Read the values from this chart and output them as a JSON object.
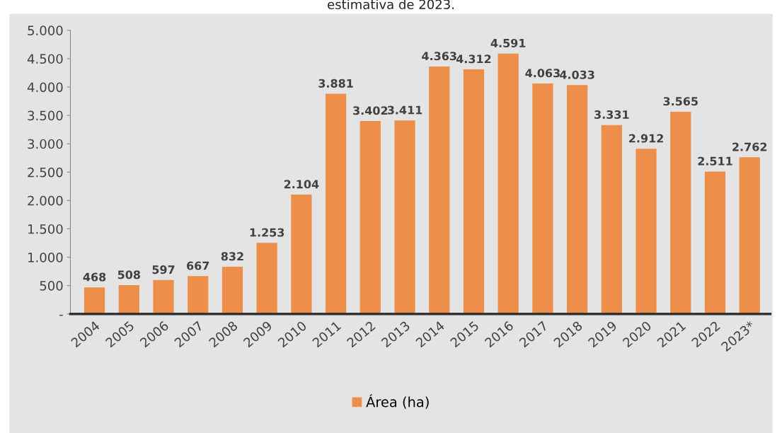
{
  "chart_data": {
    "type": "bar",
    "title": "estimativa de 2023.",
    "categories": [
      "2004",
      "2005",
      "2006",
      "2007",
      "2008",
      "2009",
      "2010",
      "2011",
      "2012",
      "2013",
      "2014",
      "2015",
      "2016",
      "2017",
      "2018",
      "2019",
      "2020",
      "2021",
      "2022",
      "2023*"
    ],
    "series": [
      {
        "name": "Área (ha)",
        "color": "#ed8e4a",
        "values": [
          468,
          508,
          597,
          667,
          832,
          1253,
          2104,
          3881,
          3402,
          3411,
          4363,
          4312,
          4591,
          4063,
          4033,
          3331,
          2912,
          3565,
          2511,
          2762
        ],
        "value_labels": [
          "468",
          "508",
          "597",
          "667",
          "832",
          "1.253",
          "2.104",
          "3.881",
          "3.402",
          "3.411",
          "4.363",
          "4.312",
          "4.591",
          "4.063",
          "4.033",
          "3.331",
          "2.912",
          "3.565",
          "2.511",
          "2.762"
        ]
      }
    ],
    "ylim": [
      0,
      5000
    ],
    "yticks": [
      {
        "value": 0,
        "label": "-"
      },
      {
        "value": 500,
        "label": "500"
      },
      {
        "value": 1000,
        "label": "1.000"
      },
      {
        "value": 1500,
        "label": "1.500"
      },
      {
        "value": 2000,
        "label": "2.000"
      },
      {
        "value": 2500,
        "label": "2.500"
      },
      {
        "value": 3000,
        "label": "3.000"
      },
      {
        "value": 3500,
        "label": "3.500"
      },
      {
        "value": 4000,
        "label": "4.000"
      },
      {
        "value": 4500,
        "label": "4.500"
      },
      {
        "value": 5000,
        "label": "5.000"
      }
    ],
    "grid": false,
    "legend": "bottom"
  }
}
